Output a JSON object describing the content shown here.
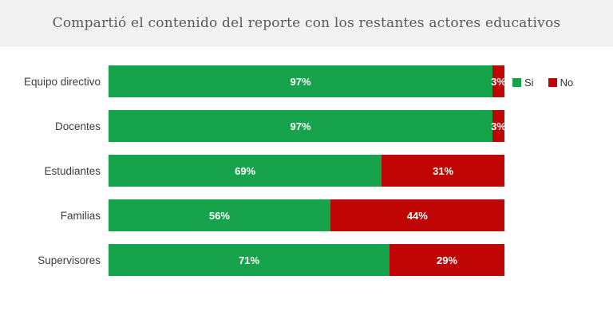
{
  "colors": {
    "header_bg": "#f2f2f2",
    "title_text": "#595959",
    "si_green": "#17a34b",
    "no_red": "#c00505"
  },
  "chart_data": {
    "type": "bar",
    "orientation": "horizontal",
    "stacked": true,
    "title": "Compartió el contenido del reporte con los restantes actores educativos",
    "categories": [
      "Equipo directivo",
      "Docentes",
      "Estudiantes",
      "Familias",
      "Supervisores"
    ],
    "series": [
      {
        "name": "Si",
        "color": "#17a34b",
        "values": [
          97,
          97,
          69,
          56,
          71
        ],
        "labels": [
          "97%",
          "97%",
          "69%",
          "56%",
          "71%"
        ]
      },
      {
        "name": "No",
        "color": "#c00505",
        "values": [
          3,
          3,
          31,
          44,
          29
        ],
        "labels": [
          "3%",
          "3%",
          "31%",
          "44%",
          "29%"
        ]
      }
    ],
    "xlim": [
      0,
      100
    ],
    "grid": false,
    "legend_position": "right-of-first-bar",
    "value_label_style": "white-bold-inside-segment"
  }
}
